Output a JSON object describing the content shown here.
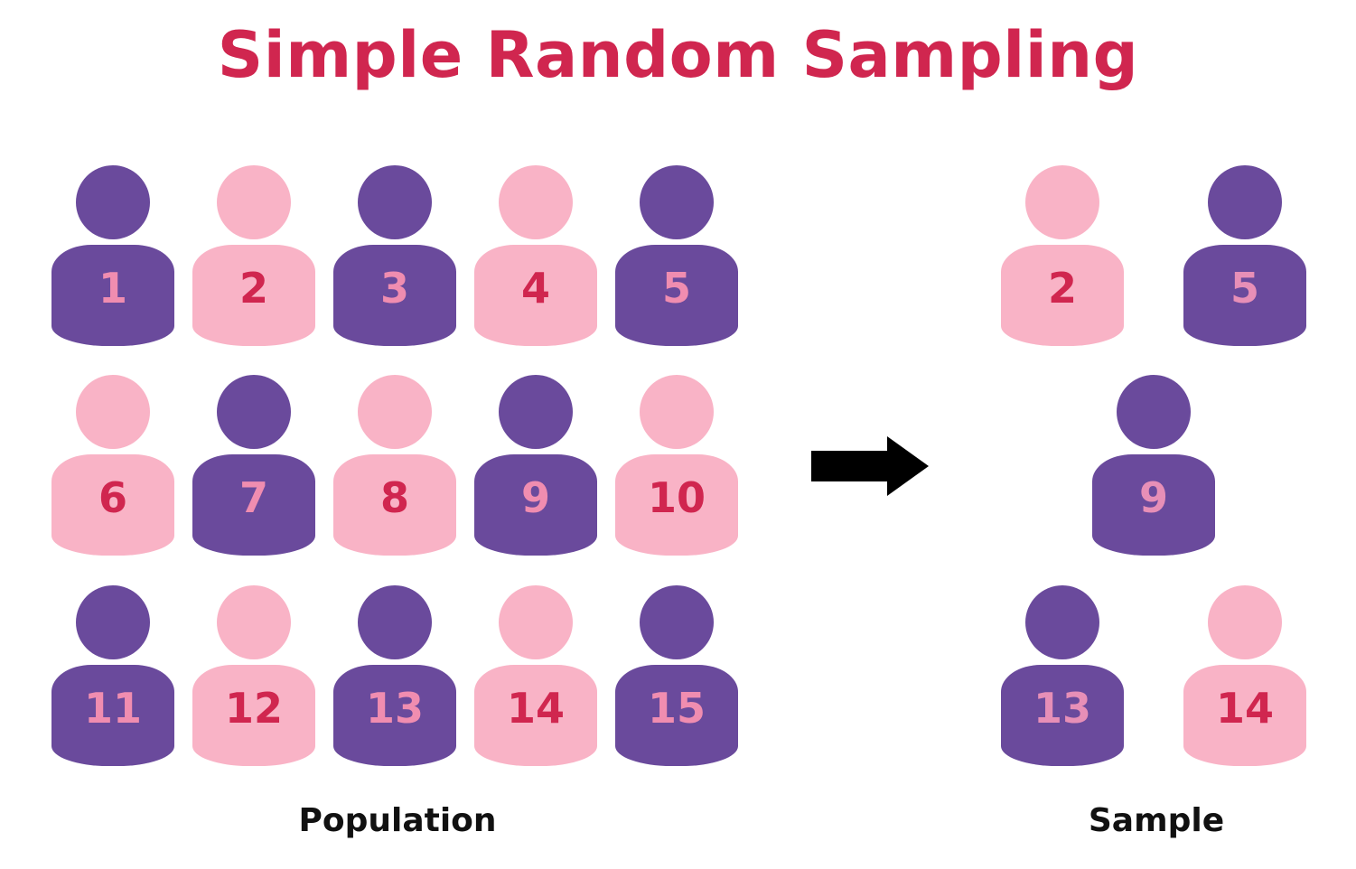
{
  "title": "Simple Random Sampling",
  "colors": {
    "title": "#d0264f",
    "purple": "#6a4a9c",
    "pink": "#f9b3c6",
    "number_on_pink": "#d0264f",
    "number_on_purple": "#f08db0",
    "number_on_purple_sample": "#e78fb7",
    "arrow": "#000000",
    "caption": "#111111"
  },
  "population": {
    "caption": "Population",
    "people": [
      {
        "number": "1",
        "color": "purple"
      },
      {
        "number": "2",
        "color": "pink"
      },
      {
        "number": "3",
        "color": "purple"
      },
      {
        "number": "4",
        "color": "pink"
      },
      {
        "number": "5",
        "color": "purple"
      },
      {
        "number": "6",
        "color": "pink"
      },
      {
        "number": "7",
        "color": "purple"
      },
      {
        "number": "8",
        "color": "pink"
      },
      {
        "number": "9",
        "color": "purple"
      },
      {
        "number": "10",
        "color": "pink"
      },
      {
        "number": "11",
        "color": "purple"
      },
      {
        "number": "12",
        "color": "pink"
      },
      {
        "number": "13",
        "color": "purple"
      },
      {
        "number": "14",
        "color": "pink"
      },
      {
        "number": "15",
        "color": "purple"
      }
    ]
  },
  "sample": {
    "caption": "Sample",
    "people": [
      {
        "number": "2",
        "color": "pink"
      },
      {
        "number": "5",
        "color": "purple"
      },
      {
        "number": "9",
        "color": "purple"
      },
      {
        "number": "13",
        "color": "purple"
      },
      {
        "number": "14",
        "color": "pink"
      }
    ]
  },
  "arrow_icon": "right-arrow-icon"
}
